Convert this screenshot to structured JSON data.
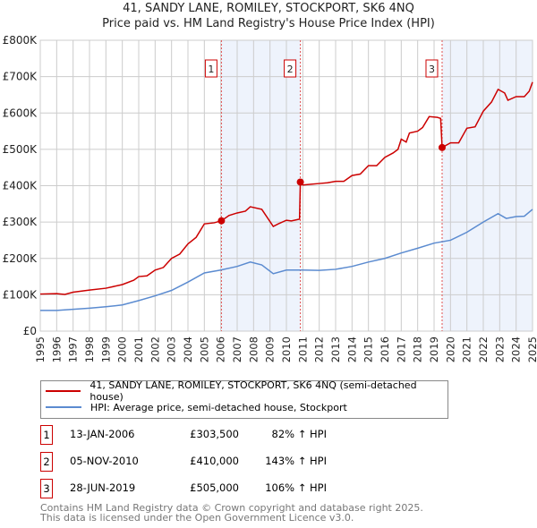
{
  "chart_data": {
    "type": "line",
    "title": "41, SANDY LANE, ROMILEY, STOCKPORT, SK6 4NQ",
    "subtitle": "Price paid vs. HM Land Registry's House Price Index (HPI)",
    "xlim": [
      1995,
      2025
    ],
    "ylim": [
      0,
      800000
    ],
    "y_ticks": [
      {
        "v": 0,
        "label": "£0"
      },
      {
        "v": 100000,
        "label": "£100K"
      },
      {
        "v": 200000,
        "label": "£200K"
      },
      {
        "v": 300000,
        "label": "£300K"
      },
      {
        "v": 400000,
        "label": "£400K"
      },
      {
        "v": 500000,
        "label": "£500K"
      },
      {
        "v": 600000,
        "label": "£600K"
      },
      {
        "v": 700000,
        "label": "£700K"
      },
      {
        "v": 800000,
        "label": "£800K"
      }
    ],
    "x_ticks": [
      "1995",
      "1996",
      "1997",
      "1998",
      "1999",
      "2000",
      "2001",
      "2002",
      "2003",
      "2004",
      "2005",
      "2006",
      "2007",
      "2008",
      "2009",
      "2010",
      "2011",
      "2012",
      "2013",
      "2014",
      "2015",
      "2016",
      "2017",
      "2018",
      "2019",
      "2020",
      "2021",
      "2022",
      "2023",
      "2024",
      "2025"
    ],
    "grid": true,
    "series": [
      {
        "name": "41, SANDY LANE, ROMILEY, STOCKPORT, SK6 4NQ (semi-detached house)",
        "color": "#cc0000",
        "x": [
          1995,
          1996,
          1996.5,
          1997,
          1998,
          1999,
          2000,
          2000.7,
          2001,
          2001.5,
          2002,
          2002.5,
          2003,
          2003.5,
          2004,
          2004.5,
          2005,
          2005.6,
          2006.04,
          2006.5,
          2007,
          2007.5,
          2007.8,
          2008.5,
          2009.2,
          2009.5,
          2010,
          2010.3,
          2010.8,
          2010.85,
          2011,
          2011.5,
          2012,
          2012.5,
          2013,
          2013.5,
          2014,
          2014.5,
          2015,
          2015.5,
          2016,
          2016.5,
          2016.8,
          2017,
          2017.3,
          2017.5,
          2018,
          2018.3,
          2018.7,
          2019.2,
          2019.4,
          2019.49,
          2020,
          2020.5,
          2021,
          2021.5,
          2022,
          2022.5,
          2022.9,
          2023.3,
          2023.5,
          2024,
          2024.5,
          2024.8,
          2025
        ],
        "y": [
          102000,
          103000,
          101000,
          107000,
          113000,
          118000,
          128000,
          140000,
          150000,
          152000,
          168000,
          175000,
          200000,
          212000,
          240000,
          258000,
          295000,
          298000,
          303500,
          318000,
          325000,
          330000,
          342000,
          335000,
          288000,
          295000,
          305000,
          303000,
          308000,
          410000,
          402000,
          404000,
          406000,
          408000,
          412000,
          412000,
          428000,
          432000,
          455000,
          455000,
          478000,
          490000,
          500000,
          528000,
          520000,
          545000,
          550000,
          560000,
          590000,
          588000,
          585000,
          505000,
          518000,
          518000,
          558000,
          562000,
          605000,
          630000,
          665000,
          655000,
          635000,
          645000,
          645000,
          660000,
          685000
        ]
      },
      {
        "name": "HPI: Average price, semi-detached house, Stockport",
        "color": "#5b8bd0",
        "x": [
          1995,
          1996,
          1997,
          1998,
          1999,
          2000,
          2001,
          2002,
          2003,
          2004,
          2005,
          2006,
          2007,
          2007.8,
          2008.5,
          2009.2,
          2010,
          2011,
          2012,
          2013,
          2014,
          2015,
          2016,
          2017,
          2018,
          2019,
          2020,
          2021,
          2022,
          2022.9,
          2023.4,
          2024,
          2024.5,
          2025
        ],
        "y": [
          57000,
          57000,
          60000,
          63000,
          67000,
          72000,
          84000,
          97000,
          112000,
          135000,
          160000,
          168000,
          178000,
          190000,
          182000,
          158000,
          168000,
          168000,
          167000,
          170000,
          178000,
          190000,
          200000,
          215000,
          228000,
          242000,
          250000,
          272000,
          300000,
          323000,
          310000,
          315000,
          316000,
          335000
        ]
      }
    ],
    "sales": [
      {
        "id": "1",
        "x": 2006.04,
        "price": 303500,
        "date": "13-JAN-2006",
        "price_label": "£303,500",
        "hpi": "82% ↑ HPI"
      },
      {
        "id": "2",
        "x": 2010.85,
        "price": 410000,
        "date": "05-NOV-2010",
        "price_label": "£410,000",
        "hpi": "143% ↑ HPI"
      },
      {
        "id": "3",
        "x": 2019.49,
        "price": 505000,
        "date": "28-JUN-2019",
        "price_label": "£505,000",
        "hpi": "106% ↑ HPI"
      }
    ],
    "shaded_ranges": [
      [
        2006.04,
        2010.85
      ],
      [
        2019.49,
        2025
      ]
    ],
    "legend_position": "below"
  },
  "footer": [
    "Contains HM Land Registry data © Crown copyright and database right 2025.",
    "This data is licensed under the Open Government Licence v3.0."
  ]
}
